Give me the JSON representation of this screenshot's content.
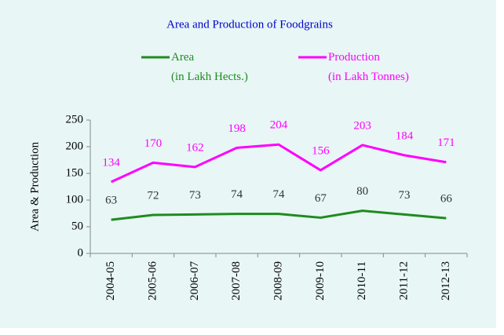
{
  "chart_data": {
    "type": "line",
    "title": "Area and Production of Foodgrains",
    "y_label": "Area & Production",
    "categories": [
      "2004-05",
      "2005-06",
      "2006-07",
      "2007-08",
      "2008-09",
      "2009-10",
      "2010-11",
      "2011-12",
      "2012-13"
    ],
    "series": [
      {
        "name": "Area\n(in Lakh Hects.)",
        "color": "#1e8c1e",
        "label_color": "#333333",
        "values": [
          63,
          72,
          73,
          74,
          74,
          67,
          80,
          73,
          66
        ]
      },
      {
        "name": "Production\n(in Lakh Tonnes)",
        "color": "#ff00ff",
        "label_color": "#ff00ff",
        "values": [
          134,
          170,
          162,
          198,
          204,
          156,
          203,
          184,
          171
        ]
      }
    ],
    "ylim": [
      0,
      250
    ],
    "yticks": [
      0,
      50,
      100,
      150,
      200,
      250
    ],
    "grid": false
  }
}
